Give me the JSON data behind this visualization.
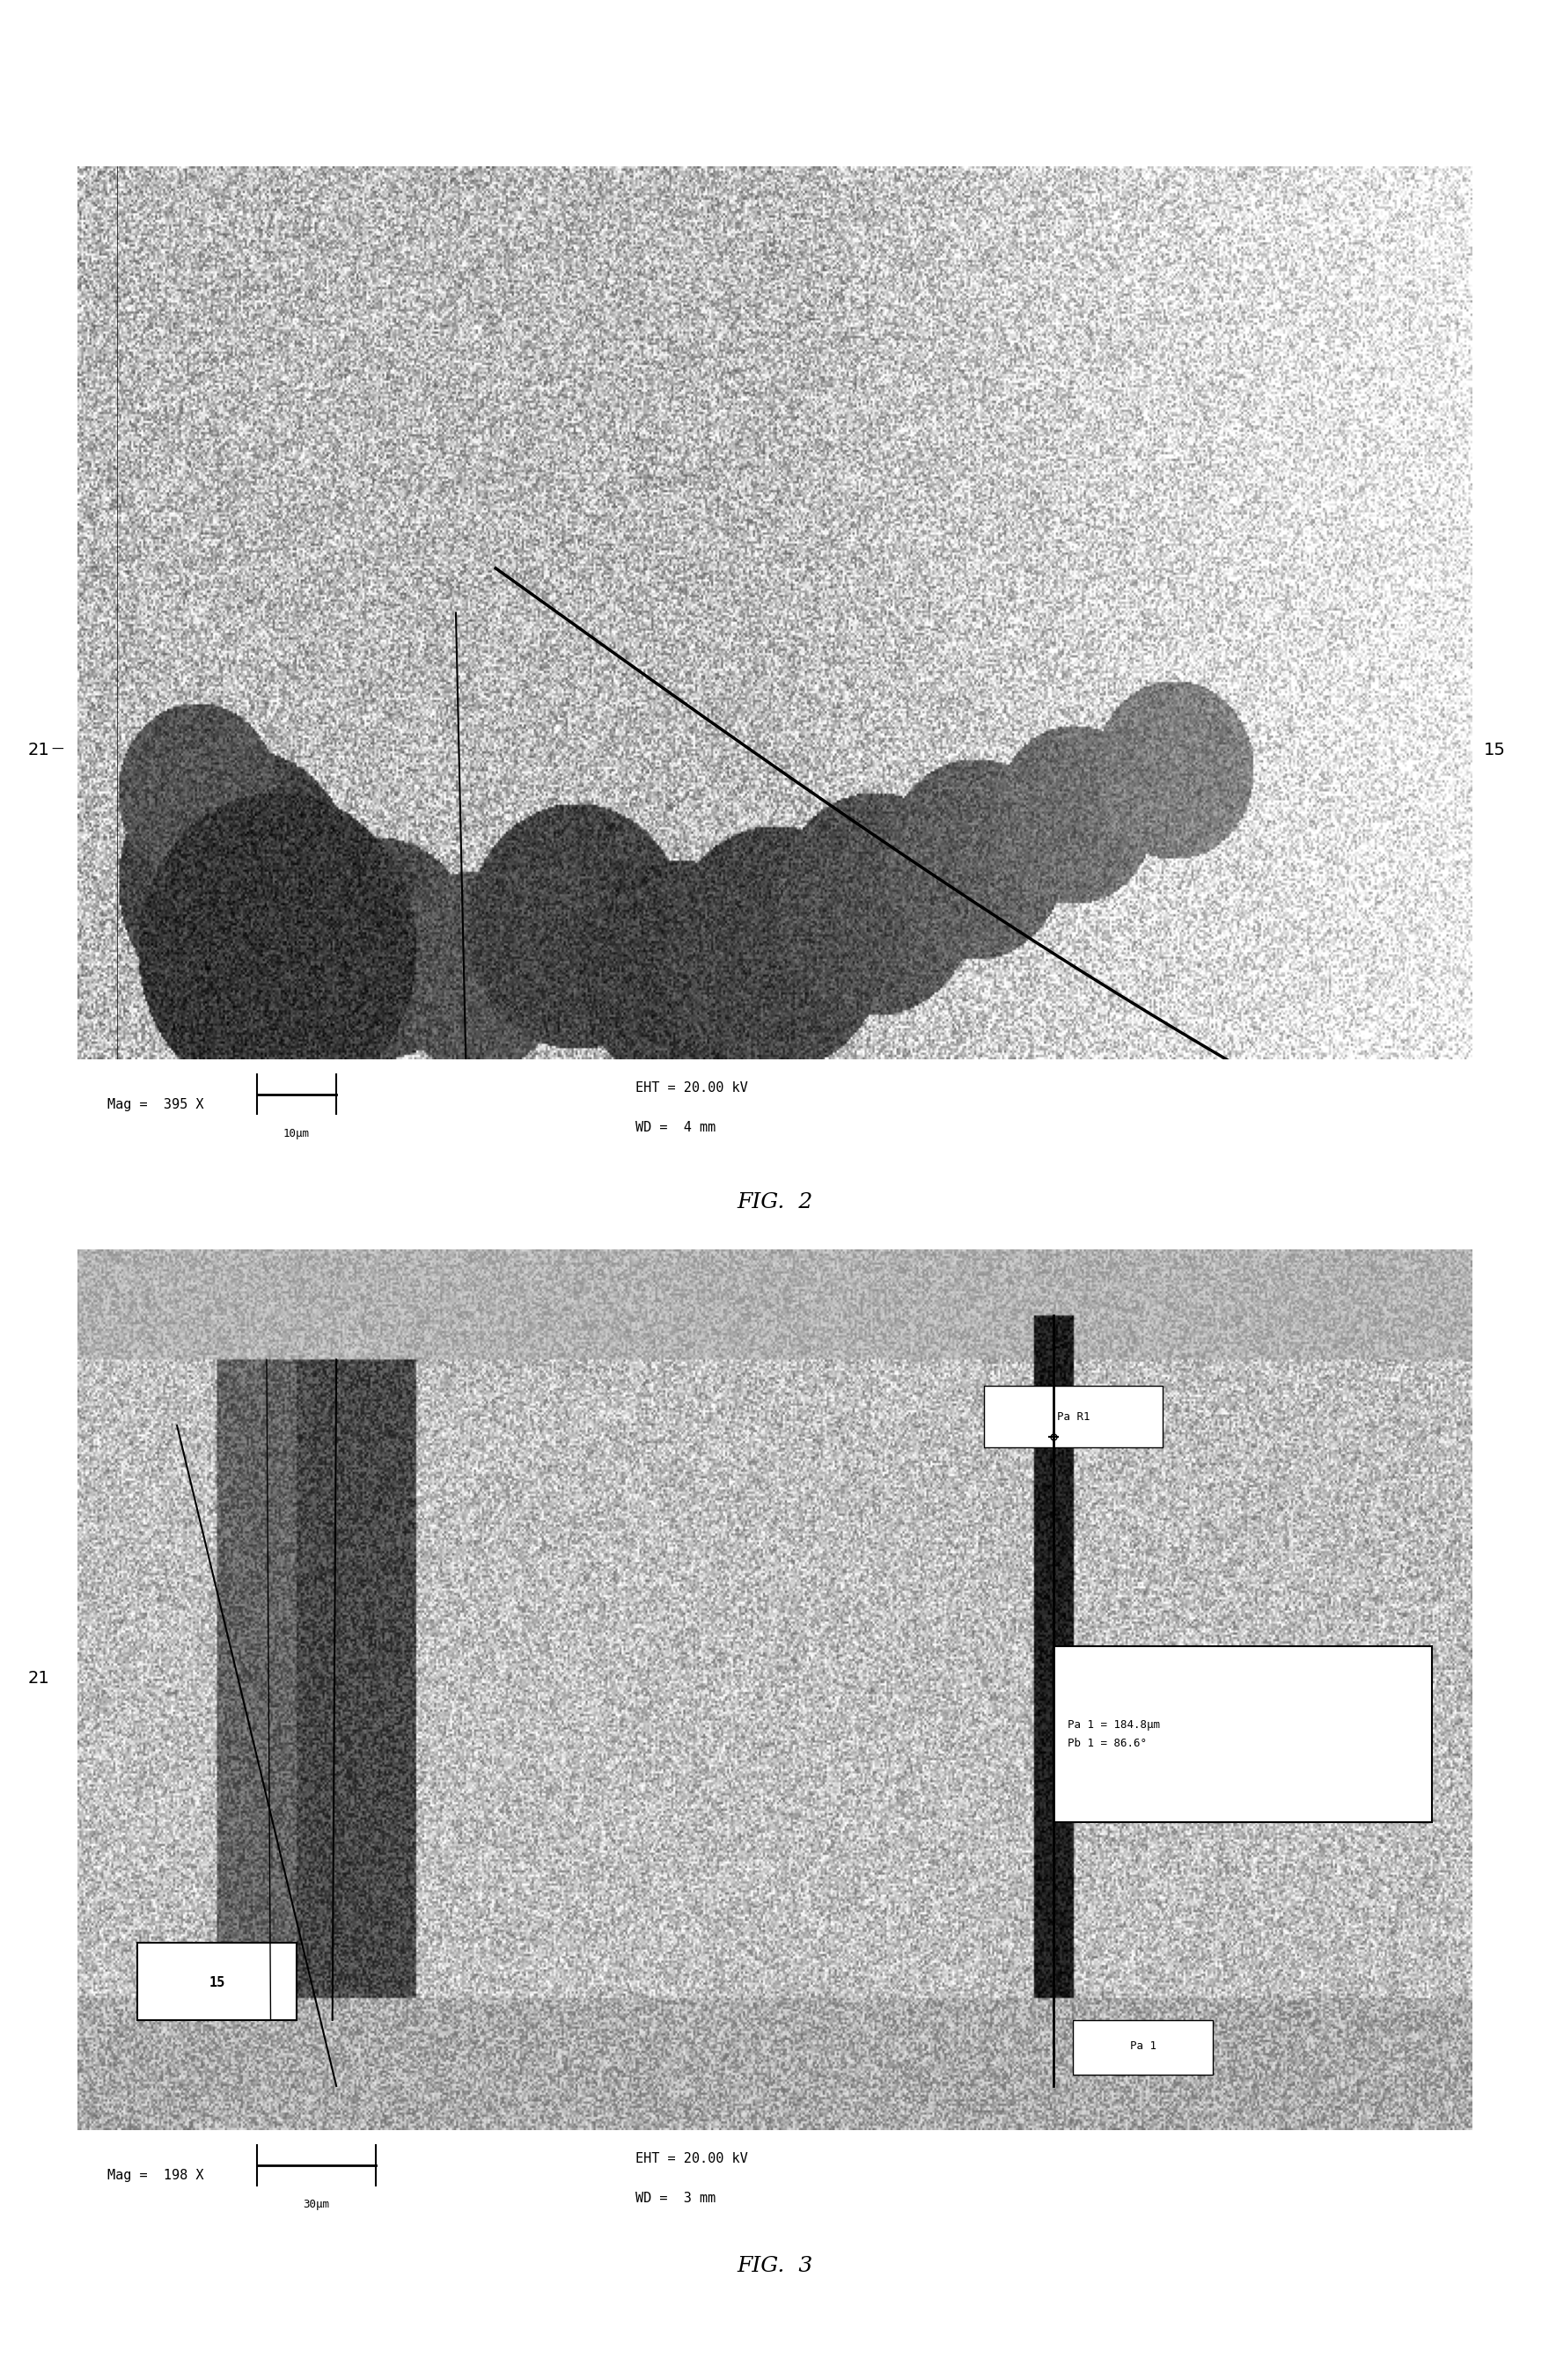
{
  "fig_width": 17.6,
  "fig_height": 27.05,
  "bg_color": "#ffffff",
  "fig2": {
    "title": "FIG.  2",
    "label_21": "21",
    "label_15": "15",
    "scale_text": "10μm",
    "mag_text": "Mag =  395 X",
    "eht_text": "EHT = 20.00 kV",
    "wd_text": "WD =  4 mm",
    "box_color": "#f0f0f0",
    "image_bg": "#e8e8e8"
  },
  "fig3": {
    "title": "FIG.  3",
    "label_21": "21",
    "label_15": "15",
    "scale_text": "30μm",
    "mag_text": "Mag =  198 X",
    "eht_text": "EHT = 20.00 kV",
    "wd_text": "WD =  3 mm",
    "pa_r1_text": "Pa R1",
    "pa1_text": "Pa 1",
    "measurement_text": "Pa 1 = 184.8μm\nPb 1 = 86.6°",
    "image_bg": "#e0e0e0"
  }
}
